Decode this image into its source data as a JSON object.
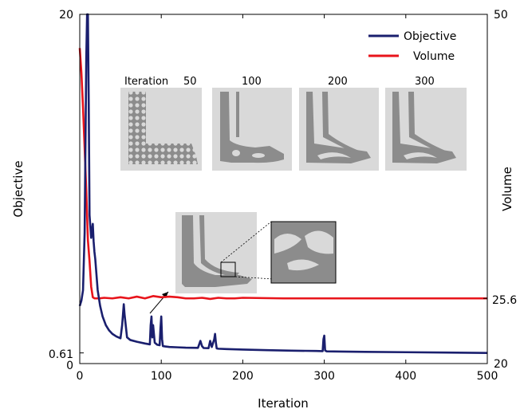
{
  "chart_data": {
    "type": "line",
    "xlabel": "Iteration",
    "ylabel_left": "Objective",
    "ylabel_right": "Volume",
    "xlim": [
      0,
      500
    ],
    "ylim_left": [
      0,
      20
    ],
    "ylim_right": [
      20,
      50
    ],
    "x_ticks": [
      "0",
      "100",
      "200",
      "300",
      "400",
      "500"
    ],
    "y_left_ticks": [
      "0",
      "0.61",
      "20"
    ],
    "y_right_ticks": [
      "20",
      "25.6",
      "50"
    ],
    "legend_position": "top-right",
    "series": [
      {
        "name": "Objective",
        "color": "#1a1f6e",
        "axis": "left",
        "x": [
          0,
          2,
          4,
          6,
          7,
          8,
          9,
          10,
          11,
          12,
          14,
          15,
          16,
          17,
          18,
          19,
          20,
          22,
          25,
          28,
          32,
          36,
          40,
          45,
          50,
          52,
          53,
          54,
          55,
          58,
          62,
          70,
          80,
          86,
          87,
          88,
          89,
          90,
          92,
          95,
          98,
          99,
          100,
          101,
          102,
          105,
          110,
          120,
          130,
          145,
          148,
          150,
          152,
          158,
          160,
          162,
          165,
          166,
          167,
          168,
          170,
          180,
          200,
          230,
          260,
          290,
          298,
          299,
          300,
          301,
          303,
          320,
          350,
          400,
          450,
          500
        ],
        "y": [
          3.3,
          3.6,
          4.2,
          7.5,
          12.5,
          17.5,
          20,
          20,
          15,
          8.5,
          7.2,
          7.6,
          8.0,
          7.0,
          6.4,
          6.0,
          5.4,
          4.2,
          3.3,
          2.7,
          2.2,
          1.9,
          1.7,
          1.55,
          1.45,
          2.2,
          2.8,
          3.4,
          2.8,
          1.5,
          1.35,
          1.25,
          1.15,
          1.1,
          2.2,
          2.7,
          1.5,
          2.2,
          1.2,
          1.08,
          1.05,
          2.0,
          2.7,
          1.4,
          1.0,
          0.98,
          0.95,
          0.93,
          0.91,
          0.9,
          1.3,
          1.0,
          0.89,
          0.88,
          1.3,
          0.95,
          1.4,
          1.7,
          1.2,
          0.87,
          0.85,
          0.83,
          0.8,
          0.77,
          0.74,
          0.72,
          0.71,
          1.4,
          1.6,
          0.75,
          0.7,
          0.69,
          0.67,
          0.65,
          0.63,
          0.61
        ]
      },
      {
        "name": "Volume",
        "color": "#e8141b",
        "axis": "right",
        "x": [
          0,
          2,
          4,
          6,
          8,
          10,
          12,
          14,
          16,
          18,
          20,
          22,
          24,
          30,
          40,
          50,
          60,
          70,
          80,
          90,
          100,
          110,
          120,
          130,
          140,
          150,
          160,
          170,
          180,
          190,
          200,
          250,
          300,
          350,
          400,
          450,
          500
        ],
        "y": [
          47.1,
          45.0,
          42.0,
          38.5,
          34.8,
          30.6,
          28.8,
          26.6,
          25.7,
          25.6,
          25.6,
          25.6,
          25.6,
          25.65,
          25.6,
          25.7,
          25.6,
          25.75,
          25.6,
          25.8,
          25.7,
          25.75,
          25.7,
          25.6,
          25.6,
          25.65,
          25.55,
          25.65,
          25.6,
          25.6,
          25.65,
          25.6,
          25.6,
          25.6,
          25.6,
          25.6,
          25.6
        ]
      }
    ],
    "inset_labels": [
      "Iteration",
      "50",
      "100",
      "200",
      "300"
    ]
  }
}
